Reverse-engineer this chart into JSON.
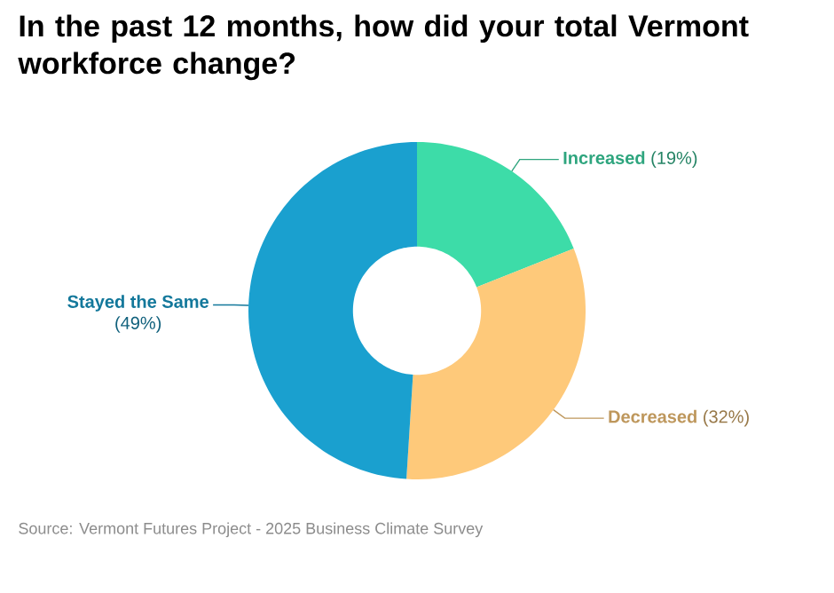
{
  "chart_data": {
    "type": "donut",
    "title": "In the past 12 months, how did your total Vermont workforce change?",
    "categories": [
      "Increased",
      "Decreased",
      "Stayed the Same"
    ],
    "values": [
      19,
      32,
      49
    ],
    "colors": [
      "#3ddca8",
      "#fec97a",
      "#1aa0cf"
    ],
    "value_labels": [
      "(19%)",
      "(32%)",
      "(49%)"
    ],
    "annotations": [
      "Source: Vermont Futures Project - 2025 Business Climate Survey"
    ]
  }
}
